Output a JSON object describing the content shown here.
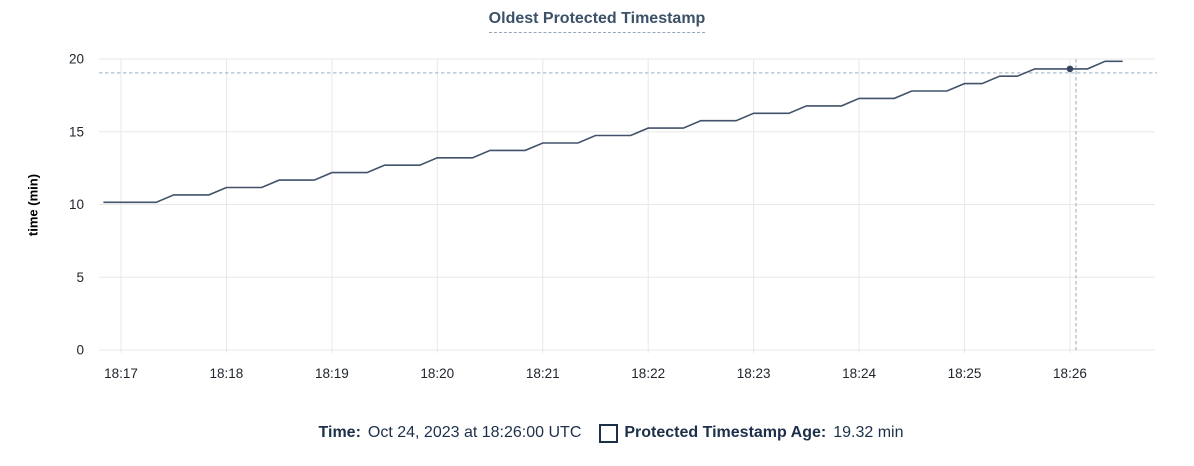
{
  "header": {
    "title": "Oldest Protected Timestamp"
  },
  "chart_data": {
    "type": "line",
    "title": "Oldest Protected Timestamp",
    "xlabel": "",
    "ylabel": "time (min)",
    "ylim": [
      0,
      20
    ],
    "yticks": [
      0,
      5,
      10,
      15,
      20
    ],
    "xtick_labels": [
      "18:17",
      "18:18",
      "18:19",
      "18:20",
      "18:21",
      "18:22",
      "18:23",
      "18:24",
      "18:25",
      "18:26"
    ],
    "grid": true,
    "legend_position": "bottom",
    "t_unit": "seconds after 18:17:00",
    "series": [
      {
        "name": "Protected Timestamp Age",
        "unit": "min",
        "color": "#42526b",
        "points": [
          [
            -10,
            10.15
          ],
          [
            0,
            10.15
          ],
          [
            10,
            10.15
          ],
          [
            20,
            10.15
          ],
          [
            30,
            10.66
          ],
          [
            40,
            10.66
          ],
          [
            50,
            10.66
          ],
          [
            60,
            11.17
          ],
          [
            70,
            11.17
          ],
          [
            80,
            11.17
          ],
          [
            90,
            11.68
          ],
          [
            100,
            11.68
          ],
          [
            110,
            11.68
          ],
          [
            120,
            12.19
          ],
          [
            130,
            12.19
          ],
          [
            140,
            12.19
          ],
          [
            150,
            12.7
          ],
          [
            160,
            12.7
          ],
          [
            170,
            12.7
          ],
          [
            180,
            13.21
          ],
          [
            190,
            13.21
          ],
          [
            200,
            13.21
          ],
          [
            210,
            13.72
          ],
          [
            220,
            13.72
          ],
          [
            230,
            13.72
          ],
          [
            240,
            14.23
          ],
          [
            250,
            14.23
          ],
          [
            260,
            14.23
          ],
          [
            270,
            14.74
          ],
          [
            280,
            14.74
          ],
          [
            290,
            14.74
          ],
          [
            300,
            15.25
          ],
          [
            310,
            15.25
          ],
          [
            320,
            15.25
          ],
          [
            330,
            15.76
          ],
          [
            340,
            15.76
          ],
          [
            350,
            15.76
          ],
          [
            360,
            16.27
          ],
          [
            370,
            16.27
          ],
          [
            380,
            16.27
          ],
          [
            390,
            16.78
          ],
          [
            400,
            16.78
          ],
          [
            410,
            16.78
          ],
          [
            420,
            17.29
          ],
          [
            430,
            17.29
          ],
          [
            440,
            17.29
          ],
          [
            450,
            17.8
          ],
          [
            460,
            17.8
          ],
          [
            470,
            17.8
          ],
          [
            480,
            18.31
          ],
          [
            490,
            18.31
          ],
          [
            500,
            18.82
          ],
          [
            510,
            18.82
          ],
          [
            520,
            19.32
          ],
          [
            530,
            19.32
          ],
          [
            540,
            19.32
          ],
          [
            550,
            19.32
          ],
          [
            560,
            19.84
          ],
          [
            570,
            19.84
          ]
        ]
      }
    ],
    "hover": {
      "t": 540,
      "time_label": "18:26:00",
      "value": 19.32
    }
  },
  "footer": {
    "time_label": "Time:",
    "time_value": "Oct 24, 2023 at 18:26:00 UTC",
    "legend_label": "Protected Timestamp Age:",
    "legend_value": "19.32 min",
    "checkbox_checked": false
  },
  "colors": {
    "background": "#ffffff",
    "grid": "#e8e8e8",
    "series_line": "#42526b",
    "hover_dot": "#364660",
    "crosshair": "#adbecb",
    "tick_text": "#20262e",
    "title_text": "#3c5168",
    "title_underline": "#97a5b7",
    "footer_text": "#1d3049"
  }
}
